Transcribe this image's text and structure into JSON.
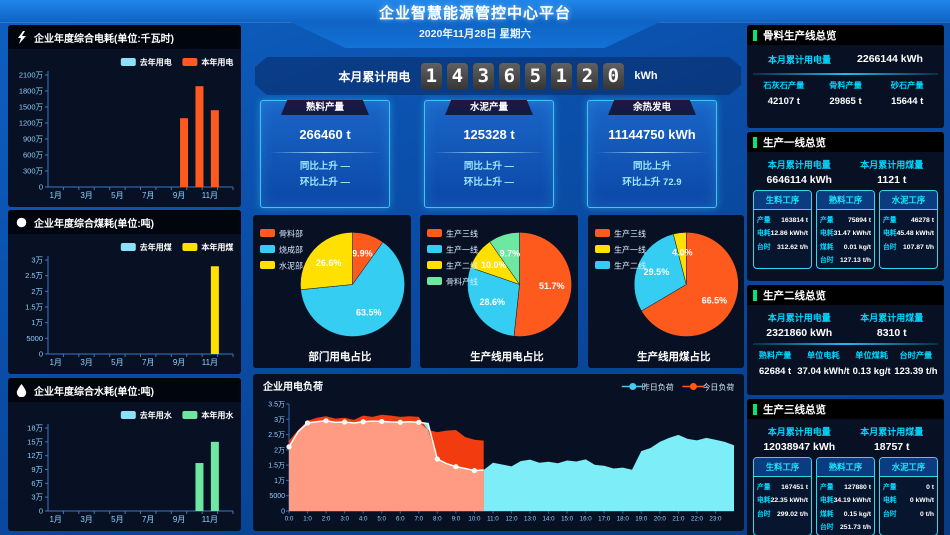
{
  "header": {
    "title": "企业智慧能源管控中心平台",
    "date": "2020年11月28日 星期六"
  },
  "counter": {
    "label": "本月累计用电",
    "digits": "14365120",
    "unit": "kWh"
  },
  "stat_cards": [
    {
      "title": "熟料产量",
      "value": "266460 t",
      "yoy": "同比上升 —",
      "mom": "环比上升 —"
    },
    {
      "title": "水泥产量",
      "value": "125328 t",
      "yoy": "同比上升 —",
      "mom": "环比上升 —"
    },
    {
      "title": "余热发电",
      "value": "11144750 kWh",
      "yoy": "同比上升",
      "mom": "环比上升 72.9"
    }
  ],
  "left_panels": [
    {
      "title": "企业年度综合电耗(单位:千瓦时)",
      "icon": "lightning-icon",
      "chart": 0
    },
    {
      "title": "企业年度综合煤耗(单位:吨)",
      "icon": "circle-icon",
      "chart": 1
    },
    {
      "title": "企业年度综合水耗(单位:吨)",
      "icon": "water-drop-icon",
      "chart": 2
    }
  ],
  "colors": {
    "accent_cyan": "#00d8ff",
    "accent_green": "#00e575",
    "panel_bg": "#081123"
  },
  "chart_data": [
    {
      "type": "bar",
      "title": "企业年度综合电耗(单位:千瓦时)",
      "categories": [
        "1月",
        "2月",
        "3月",
        "4月",
        "5月",
        "6月",
        "7月",
        "8月",
        "9月",
        "10月",
        "11月",
        "12月"
      ],
      "series": [
        {
          "name": "去年用电",
          "color": "#8ce1f9",
          "values": [
            0,
            0,
            0,
            0,
            0,
            0,
            0,
            0,
            0,
            0,
            0,
            0
          ]
        },
        {
          "name": "本年用电",
          "color": "#ff5a1e",
          "values": [
            0,
            0,
            0,
            0,
            0,
            0,
            0,
            0,
            1290,
            1890,
            1440,
            0
          ]
        }
      ],
      "unit": "万",
      "ymax": 2100,
      "yticks": [
        "0",
        "300万",
        "600万",
        "900万",
        "1200万",
        "1500万",
        "1800万",
        "2100万"
      ]
    },
    {
      "type": "bar",
      "title": "企业年度综合煤耗(单位:吨)",
      "categories": [
        "1月",
        "2月",
        "3月",
        "4月",
        "5月",
        "6月",
        "7月",
        "8月",
        "9月",
        "10月",
        "11月",
        "12月"
      ],
      "series": [
        {
          "name": "去年用煤",
          "color": "#8ce1f9",
          "values": [
            0,
            0,
            0,
            0,
            0,
            0,
            0,
            0,
            0,
            0,
            0,
            0
          ]
        },
        {
          "name": "本年用煤",
          "color": "#ffe000",
          "values": [
            0,
            0,
            0,
            0,
            0,
            0,
            0,
            0,
            0,
            0,
            2.8,
            0
          ]
        }
      ],
      "unit": "万",
      "ymax": 3,
      "yticks": [
        "0",
        "5000",
        "1万",
        "1.5万",
        "2万",
        "2.5万",
        "3万"
      ]
    },
    {
      "type": "bar",
      "title": "企业年度综合水耗(单位:吨)",
      "categories": [
        "1月",
        "2月",
        "3月",
        "4月",
        "5月",
        "6月",
        "7月",
        "8月",
        "9月",
        "10月",
        "11月",
        "12月"
      ],
      "series": [
        {
          "name": "去年用水",
          "color": "#8ce1f9",
          "values": [
            0,
            0,
            0,
            0,
            0,
            0,
            0,
            0,
            0,
            0,
            0,
            0
          ]
        },
        {
          "name": "本年用水",
          "color": "#6ee7a0",
          "values": [
            0,
            0,
            0,
            0,
            0,
            0,
            0,
            0,
            0,
            10.4,
            15,
            0
          ]
        }
      ],
      "unit": "万",
      "ymax": 18,
      "yticks": [
        "0",
        "3万",
        "6万",
        "9万",
        "12万",
        "15万",
        "18万"
      ]
    },
    {
      "type": "pie",
      "title": "部门用电占比",
      "slices": [
        {
          "label": "骨料部",
          "value": 9.9,
          "color": "#ff5a1e"
        },
        {
          "label": "烧成部",
          "value": 63.5,
          "color": "#36cdf2"
        },
        {
          "label": "水泥部",
          "value": 26.6,
          "color": "#ffe000"
        }
      ]
    },
    {
      "type": "pie",
      "title": "生产线用电占比",
      "slices": [
        {
          "label": "生产三线",
          "value": 51.7,
          "color": "#ff5a1e"
        },
        {
          "label": "生产一线",
          "value": 28.6,
          "color": "#36cdf2"
        },
        {
          "label": "生产二线",
          "value": 10.0,
          "color": "#ffe000"
        },
        {
          "label": "骨料产线",
          "value": 9.7,
          "color": "#6ee7a0"
        }
      ]
    },
    {
      "type": "pie",
      "title": "生产线用煤占比",
      "slices": [
        {
          "label": "生产三线",
          "value": 66.5,
          "color": "#ff5a1e"
        },
        {
          "label": "生产二线",
          "value": 29.5,
          "color": "#36cdf2"
        },
        {
          "label": "生产一线",
          "value": 4.0,
          "color": "#ffe000"
        }
      ],
      "legend_order": [
        0,
        2,
        1
      ]
    },
    {
      "type": "area",
      "title": "企业用电负荷",
      "legend": [
        {
          "name": "昨日负荷",
          "color": "#49c9f0"
        },
        {
          "name": "今日负荷",
          "color": "#ff5a1e"
        }
      ],
      "ymax": 35000,
      "yticks": [
        "0",
        "5000",
        "1万",
        "1.5万",
        "2万",
        "2.5万",
        "3万",
        "3.5万"
      ],
      "xticks": [
        "0:0",
        "1:0",
        "2:0",
        "3:0",
        "4:0",
        "5:0",
        "6:0",
        "7:0",
        "8:0",
        "9:0",
        "10:0",
        "11:0",
        "12:0",
        "13:0",
        "14:0",
        "15:0",
        "16:0",
        "17:0",
        "18:0",
        "19:0",
        "20:0",
        "21:0",
        "22:0",
        "23:0"
      ],
      "step": 0.5,
      "yesterday": [
        21000,
        26000,
        28800,
        29200,
        29500,
        29000,
        29100,
        28800,
        29200,
        29400,
        29300,
        29100,
        29000,
        29200,
        29000,
        28600,
        17000,
        15500,
        14500,
        13900,
        13200,
        13400,
        15800,
        15200,
        14600,
        16300,
        16800,
        15800,
        16100,
        15600,
        16500,
        16200,
        16900,
        15100,
        14800,
        13900,
        14200,
        13500,
        19600,
        20600,
        22600,
        23900,
        24900,
        23600,
        23100,
        23900,
        23300,
        22600,
        21500
      ],
      "today": [
        23000,
        26500,
        29500,
        30500,
        31000,
        30200,
        30500,
        29800,
        31200,
        30800,
        31500,
        31200,
        30800,
        31000,
        30800,
        26500,
        25800,
        26300,
        26500,
        24200,
        23300,
        23000
      ]
    }
  ],
  "right_panels": [
    {
      "title": "骨料生产线总览",
      "summary": [
        {
          "label": "本月累计用电量",
          "value": "2266144 kWh"
        }
      ],
      "stats": [
        {
          "label": "石灰石产量",
          "value": "42107 t"
        },
        {
          "label": "骨料产量",
          "value": "29865 t"
        },
        {
          "label": "砂石产量",
          "value": "15644 t"
        }
      ]
    },
    {
      "title": "生产一线总览",
      "summary": [
        {
          "label": "本月累计用电量",
          "value": "6646114 kWh"
        },
        {
          "label": "本月累计用煤量",
          "value": "1121 t"
        }
      ],
      "process_boxes": [
        {
          "title": "生料工序",
          "rows": [
            [
              "产量",
              "163814 t"
            ],
            [
              "电耗",
              "12.86 kWh/t"
            ],
            [
              "台时",
              "312.62 t/h"
            ]
          ]
        },
        {
          "title": "熟料工序",
          "rows": [
            [
              "产量",
              "75894 t"
            ],
            [
              "电耗",
              "31.47 kWh/t"
            ],
            [
              "煤耗",
              "0.01 kg/t"
            ],
            [
              "台时",
              "127.13 t/h"
            ]
          ]
        },
        {
          "title": "水泥工序",
          "rows": [
            [
              "产量",
              "46278 t"
            ],
            [
              "电耗",
              "45.48 kWh/t"
            ],
            [
              "台时",
              "107.87 t/h"
            ]
          ]
        }
      ]
    },
    {
      "title": "生产二线总览",
      "summary": [
        {
          "label": "本月累计用电量",
          "value": "2321860 kWh"
        },
        {
          "label": "本月累计用煤量",
          "value": "8310 t"
        }
      ],
      "stats": [
        {
          "label": "熟料产量",
          "value": "62684 t"
        },
        {
          "label": "单位电耗",
          "value": "37.04 kWh/t"
        },
        {
          "label": "单位煤耗",
          "value": "0.13 kg/t"
        },
        {
          "label": "台时产量",
          "value": "123.39 t/h"
        }
      ]
    },
    {
      "title": "生产三线总览",
      "summary": [
        {
          "label": "本月累计用电量",
          "value": "12038947 kWh"
        },
        {
          "label": "本月累计用煤量",
          "value": "18757 t"
        }
      ],
      "process_boxes": [
        {
          "title": "生料工序",
          "rows": [
            [
              "产量",
              "167451 t"
            ],
            [
              "电耗",
              "22.35 kWh/t"
            ],
            [
              "台时",
              "299.02 t/h"
            ]
          ]
        },
        {
          "title": "熟料工序",
          "rows": [
            [
              "产量",
              "127880 t"
            ],
            [
              "电耗",
              "34.19 kWh/t"
            ],
            [
              "煤耗",
              "0.15 kg/t"
            ],
            [
              "台时",
              "251.73 t/h"
            ]
          ]
        },
        {
          "title": "水泥工序",
          "rows": [
            [
              "产量",
              "0 t"
            ],
            [
              "电耗",
              "0 kWh/t"
            ],
            [
              "台时",
              "0 t/h"
            ]
          ]
        }
      ]
    }
  ]
}
